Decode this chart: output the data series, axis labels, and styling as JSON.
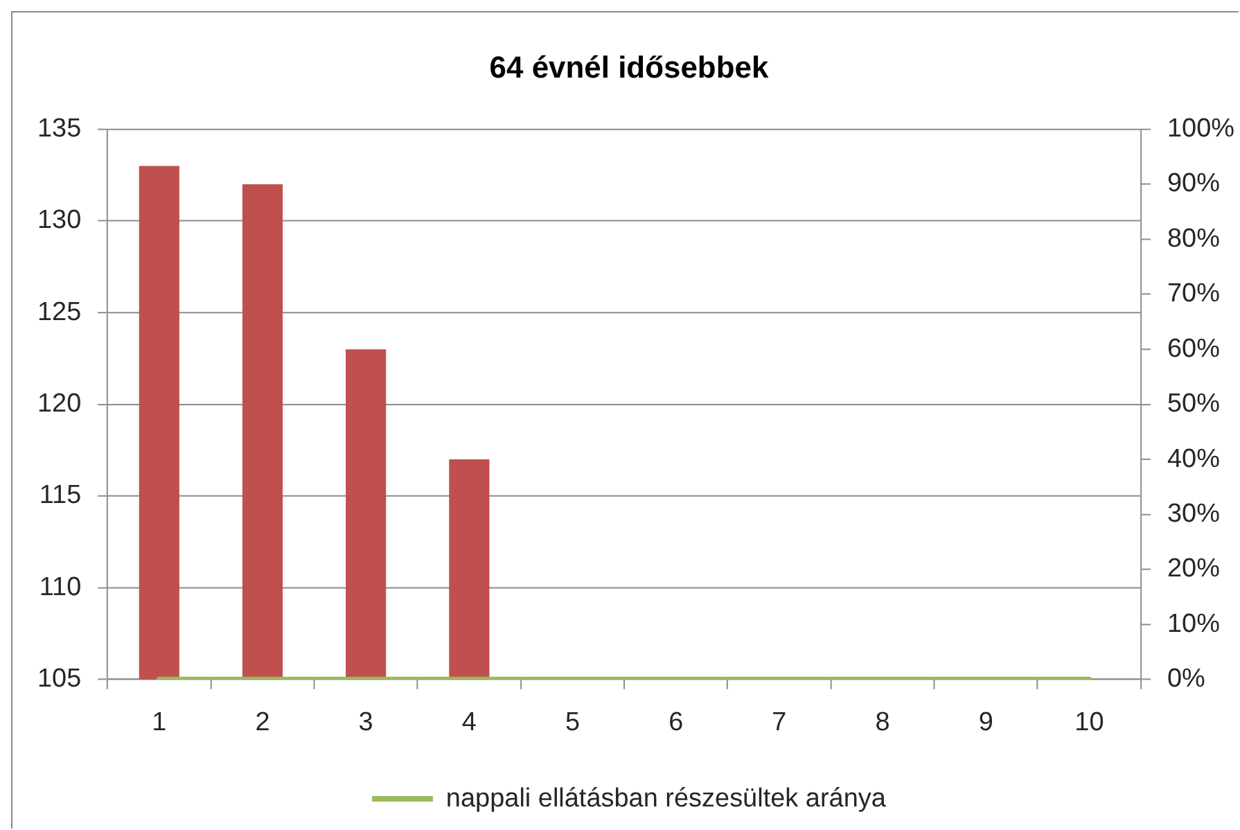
{
  "chart_data": {
    "type": "bar",
    "title": "64 évnél idősebbek",
    "categories": [
      "1",
      "2",
      "3",
      "4",
      "5",
      "6",
      "7",
      "8",
      "9",
      "10"
    ],
    "series": [
      {
        "color": "#c0504d",
        "values": [
          133,
          132,
          123,
          117,
          null,
          null,
          null,
          null,
          null,
          null
        ]
      },
      {
        "type": "line",
        "name": "nappali ellátásban részesültek aránya",
        "color": "#9bbb59",
        "axis": "y2",
        "values": [
          0,
          0,
          0,
          0,
          0,
          0,
          0,
          0,
          0,
          0
        ]
      }
    ],
    "ylim": [
      105,
      135
    ],
    "yticks": [
      105,
      110,
      115,
      120,
      125,
      130,
      135
    ],
    "y2lim": [
      0,
      100
    ],
    "y2ticks": [
      {
        "value": 0,
        "label": "0%"
      },
      {
        "value": 10,
        "label": "10%"
      },
      {
        "value": 20,
        "label": "20%"
      },
      {
        "value": 30,
        "label": "30%"
      },
      {
        "value": 40,
        "label": "40%"
      },
      {
        "value": 50,
        "label": "50%"
      },
      {
        "value": 60,
        "label": "60%"
      },
      {
        "value": 70,
        "label": "70%"
      },
      {
        "value": 80,
        "label": "80%"
      },
      {
        "value": 90,
        "label": "90%"
      },
      {
        "value": 100,
        "label": "100%"
      }
    ],
    "grid": "y",
    "legend": "bottom",
    "marker": "none"
  }
}
